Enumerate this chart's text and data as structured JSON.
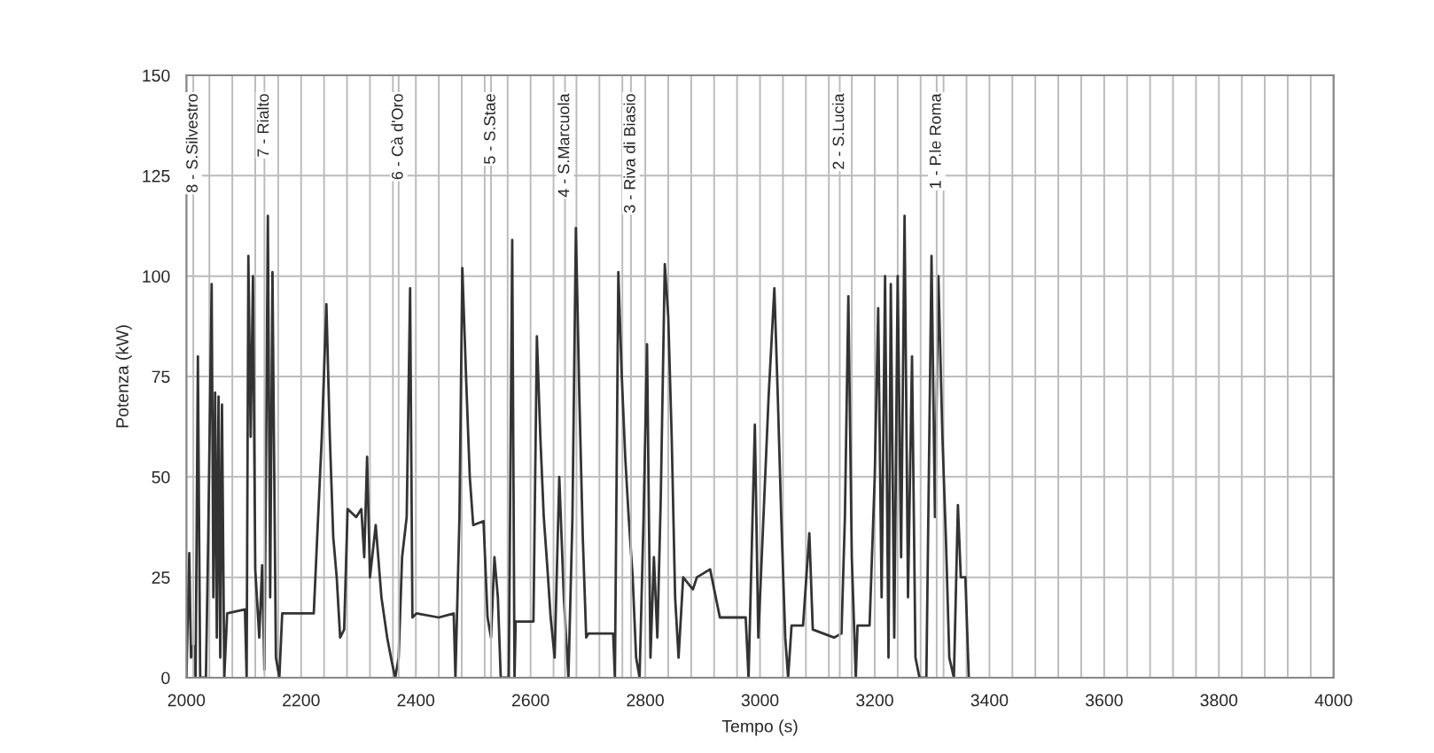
{
  "chart_data": {
    "type": "line",
    "xlabel": "Tempo (s)",
    "ylabel": "Potenza (kW)",
    "xlim": [
      2000,
      4000
    ],
    "ylim": [
      0,
      150
    ],
    "xticks": [
      2000,
      {
        "value": 2040,
        "label": null
      },
      {
        "value": 2080,
        "label": null
      },
      {
        "value": 2120,
        "label": null
      },
      {
        "value": 2160,
        "label": null
      },
      2200,
      {
        "value": 2240,
        "label": null
      },
      {
        "value": 2280,
        "label": null
      },
      {
        "value": 2320,
        "label": null
      },
      {
        "value": 2360,
        "label": null
      },
      2400,
      {
        "value": 2440,
        "label": null
      },
      {
        "value": 2480,
        "label": null
      },
      {
        "value": 2520,
        "label": null
      },
      {
        "value": 2560,
        "label": null
      },
      2600,
      {
        "value": 2640,
        "label": null
      },
      {
        "value": 2680,
        "label": null
      },
      {
        "value": 2720,
        "label": null
      },
      {
        "value": 2760,
        "label": null
      },
      2800,
      {
        "value": 2840,
        "label": null
      },
      {
        "value": 2880,
        "label": null
      },
      {
        "value": 2920,
        "label": null
      },
      {
        "value": 2960,
        "label": null
      },
      3000,
      {
        "value": 3040,
        "label": null
      },
      {
        "value": 3080,
        "label": null
      },
      {
        "value": 3120,
        "label": null
      },
      {
        "value": 3160,
        "label": null
      },
      3200,
      {
        "value": 3240,
        "label": null
      },
      {
        "value": 3280,
        "label": null
      },
      {
        "value": 3320,
        "label": null
      },
      {
        "value": 3360,
        "label": null
      },
      3400,
      {
        "value": 3440,
        "label": null
      },
      {
        "value": 3480,
        "label": null
      },
      {
        "value": 3520,
        "label": null
      },
      {
        "value": 3560,
        "label": null
      },
      3600,
      {
        "value": 3640,
        "label": null
      },
      {
        "value": 3680,
        "label": null
      },
      {
        "value": 3720,
        "label": null
      },
      {
        "value": 3760,
        "label": null
      },
      3800,
      {
        "value": 3840,
        "label": null
      },
      {
        "value": 3880,
        "label": null
      },
      {
        "value": 3920,
        "label": null
      },
      {
        "value": 3960,
        "label": null
      },
      4000
    ],
    "yticks": [
      0,
      25,
      50,
      75,
      100,
      125,
      150
    ],
    "grid": true,
    "marker": "none",
    "line_style": "solid",
    "ref_lines": [
      {
        "axis": "x",
        "value": 2012,
        "label": "8 - S.Silvestro",
        "color": "#bbbbbb"
      },
      {
        "axis": "x",
        "value": 2136,
        "label": "7 - Rialto",
        "color": "#bbbbbb"
      },
      {
        "axis": "x",
        "value": 2370,
        "label": "6 - Cà d'Oro",
        "color": "#bbbbbb"
      },
      {
        "axis": "x",
        "value": 2531,
        "label": "5 - S.Stae",
        "color": "#bbbbbb"
      },
      {
        "axis": "x",
        "value": 2660,
        "label": "4 - S.Marcuola",
        "color": "#bbbbbb"
      },
      {
        "axis": "x",
        "value": 2775,
        "label": "3 - Riva di Biasio",
        "color": "#bbbbbb"
      },
      {
        "axis": "x",
        "value": 3139,
        "label": "2 - S.Lucia",
        "color": "#bbbbbb"
      },
      {
        "axis": "x",
        "value": 3308,
        "label": "1 - P.le Roma",
        "color": "#bbbbbb"
      }
    ],
    "series": [
      {
        "color": "#333333",
        "x": [
          2000,
          2005,
          2008,
          2012,
          2016,
          2020,
          2024,
          2034,
          2038,
          2044,
          2047,
          2050,
          2053,
          2056,
          2059,
          2062,
          2066,
          2071,
          2102,
          2105,
          2108,
          2112,
          2116,
          2120,
          2127,
          2132,
          2136,
          2142,
          2146,
          2150,
          2156,
          2162,
          2167,
          2222,
          2228,
          2236,
          2244,
          2250,
          2256,
          2262,
          2268,
          2275,
          2281,
          2296,
          2305,
          2310,
          2315,
          2320,
          2330,
          2340,
          2350,
          2358,
          2364,
          2370,
          2376,
          2384,
          2390,
          2394,
          2401,
          2440,
          2466,
          2469,
          2476,
          2481,
          2488,
          2494,
          2500,
          2518,
          2525,
          2531,
          2537,
          2543,
          2548,
          2562,
          2568,
          2572,
          2574,
          2605,
          2611,
          2617,
          2623,
          2629,
          2635,
          2642,
          2650,
          2658,
          2666,
          2673,
          2679,
          2685,
          2691,
          2697,
          2701,
          2744,
          2747,
          2753,
          2759,
          2765,
          2771,
          2778,
          2784,
          2790,
          2797,
          2803,
          2809,
          2815,
          2821,
          2827,
          2834,
          2840,
          2846,
          2852,
          2858,
          2866,
          2883,
          2890,
          2913,
          2930,
          2975,
          2980,
          2991,
          2997,
          3006,
          3015,
          3025,
          3031,
          3037,
          3044,
          3049,
          3055,
          3075,
          3086,
          3092,
          3129,
          3142,
          3148,
          3154,
          3160,
          3167,
          3170,
          3191,
          3200,
          3206,
          3212,
          3218,
          3224,
          3228,
          3234,
          3240,
          3246,
          3252,
          3258,
          3265,
          3271,
          3278,
          3290,
          3299,
          3305,
          3311,
          3318,
          3324,
          3330,
          3338,
          3345,
          3350,
          3358,
          3364
        ],
        "values": [
          0,
          31,
          5,
          8,
          0,
          80,
          0,
          0,
          35,
          98,
          20,
          71,
          10,
          70,
          5,
          68,
          0,
          16,
          17,
          0,
          105,
          60,
          100,
          27,
          10,
          28,
          2,
          115,
          20,
          101,
          5,
          0,
          16,
          16,
          35,
          60,
          93,
          60,
          35,
          25,
          10,
          12,
          42,
          40,
          42,
          30,
          55,
          25,
          38,
          20,
          10,
          4,
          0,
          5,
          30,
          40,
          97,
          15,
          16,
          15,
          16,
          0,
          40,
          102,
          73,
          50,
          38,
          39,
          15,
          10,
          30,
          20,
          0,
          0,
          109,
          0,
          14,
          14,
          85,
          60,
          40,
          28,
          15,
          5,
          50,
          20,
          0,
          40,
          112,
          70,
          35,
          10,
          11,
          11,
          0,
          101,
          75,
          55,
          40,
          25,
          5,
          0,
          40,
          83,
          5,
          30,
          10,
          45,
          103,
          90,
          60,
          20,
          5,
          25,
          22,
          25,
          27,
          15,
          15,
          0,
          63,
          10,
          40,
          70,
          97,
          70,
          40,
          10,
          0,
          13,
          13,
          36,
          12,
          10,
          11,
          40,
          95,
          30,
          0,
          13,
          13,
          50,
          92,
          20,
          100,
          5,
          98,
          10,
          100,
          30,
          115,
          20,
          80,
          5,
          0,
          0,
          105,
          40,
          100,
          60,
          35,
          5,
          0,
          43,
          25,
          25,
          0
        ]
      }
    ]
  }
}
